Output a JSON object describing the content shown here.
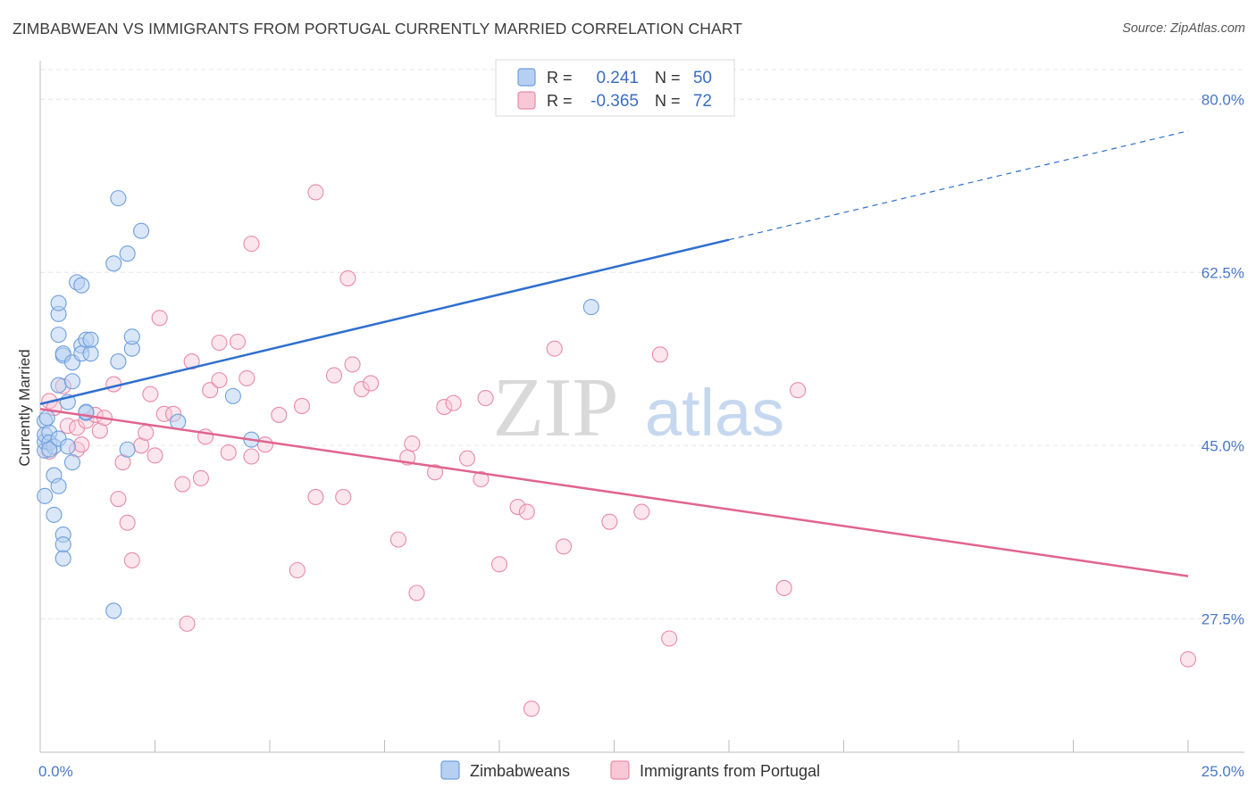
{
  "header": {
    "title": "ZIMBABWEAN VS IMMIGRANTS FROM PORTUGAL CURRENTLY MARRIED CORRELATION CHART",
    "source": "Source: ZipAtlas.com"
  },
  "watermark": {
    "zip": "ZIP",
    "atlas": "atlas"
  },
  "chart_data": {
    "type": "scatter",
    "ylabel": "Currently Married",
    "xlim": [
      0,
      25
    ],
    "ylim": [
      14,
      83
    ],
    "x_tick_labels": [
      "0.0%",
      "25.0%"
    ],
    "y_ticks": [
      {
        "value": 80.0,
        "label": "80.0%"
      },
      {
        "value": 62.5,
        "label": "62.5%"
      },
      {
        "value": 45.0,
        "label": "45.0%"
      },
      {
        "value": 27.5,
        "label": "27.5%"
      }
    ],
    "grid": true,
    "legend_position": "top-center",
    "colors": {
      "zimbabweans_fill": "#b6d0f2",
      "zimbabweans_stroke": "#6e9fdc",
      "zimbabweans_line": "#2f6fcf",
      "portugal_fill": "#f8c8d6",
      "portugal_stroke": "#e98aa8",
      "portugal_line": "#e0648e",
      "tick_label": "#4a78c8"
    },
    "stats": [
      {
        "r_label": "R =",
        "r": "0.241",
        "n_label": "N =",
        "n": "50"
      },
      {
        "r_label": "R =",
        "r": "-0.365",
        "n_label": "N =",
        "n": "72"
      }
    ],
    "series": [
      {
        "name": "Zimbabweans",
        "trend": {
          "x0": 0.0,
          "y0": 49.2,
          "x1": 15.0,
          "y1": 65.8,
          "x_dash_end": 25.0,
          "y_dash_end": 76.8
        },
        "points": [
          [
            0.1,
            39.9
          ],
          [
            0.1,
            44.5
          ],
          [
            0.1,
            45.4
          ],
          [
            0.1,
            47.5
          ],
          [
            0.1,
            46.1
          ],
          [
            0.2,
            46.3
          ],
          [
            0.2,
            45.3
          ],
          [
            0.3,
            44.9
          ],
          [
            0.2,
            44.6
          ],
          [
            0.3,
            42.0
          ],
          [
            0.3,
            38.0
          ],
          [
            0.4,
            51.1
          ],
          [
            0.4,
            40.9
          ],
          [
            0.4,
            56.2
          ],
          [
            0.4,
            58.3
          ],
          [
            0.4,
            59.4
          ],
          [
            0.4,
            45.7
          ],
          [
            0.5,
            36.0
          ],
          [
            0.5,
            35.0
          ],
          [
            0.5,
            33.6
          ],
          [
            0.5,
            54.1
          ],
          [
            0.5,
            54.3
          ],
          [
            0.6,
            44.9
          ],
          [
            0.6,
            49.4
          ],
          [
            0.7,
            51.5
          ],
          [
            0.7,
            53.4
          ],
          [
            0.7,
            43.3
          ],
          [
            0.8,
            61.5
          ],
          [
            0.9,
            55.1
          ],
          [
            0.9,
            61.2
          ],
          [
            0.9,
            54.3
          ],
          [
            1.0,
            48.3
          ],
          [
            1.0,
            55.7
          ],
          [
            1.0,
            48.4
          ],
          [
            1.1,
            54.3
          ],
          [
            1.1,
            55.7
          ],
          [
            1.6,
            63.4
          ],
          [
            1.6,
            28.3
          ],
          [
            1.7,
            53.5
          ],
          [
            1.7,
            70.0
          ],
          [
            1.9,
            64.4
          ],
          [
            1.9,
            44.6
          ],
          [
            2.0,
            54.8
          ],
          [
            2.0,
            56.0
          ],
          [
            2.2,
            66.7
          ],
          [
            3.0,
            47.4
          ],
          [
            4.2,
            50.0
          ],
          [
            4.6,
            45.6
          ],
          [
            12.0,
            59.0
          ],
          [
            0.15,
            47.8
          ]
        ]
      },
      {
        "name": "Immigrants from Portugal",
        "trend": {
          "x0": 0.0,
          "y0": 48.7,
          "x1": 25.0,
          "y1": 31.8
        },
        "points": [
          [
            0.2,
            44.4
          ],
          [
            0.2,
            49.5
          ],
          [
            0.3,
            48.8
          ],
          [
            0.5,
            51.0
          ],
          [
            0.6,
            47.0
          ],
          [
            0.8,
            44.6
          ],
          [
            0.8,
            46.8
          ],
          [
            0.9,
            45.1
          ],
          [
            1.0,
            47.5
          ],
          [
            1.2,
            48.1
          ],
          [
            1.3,
            46.5
          ],
          [
            1.4,
            47.8
          ],
          [
            1.6,
            51.2
          ],
          [
            1.7,
            39.6
          ],
          [
            1.8,
            43.3
          ],
          [
            1.9,
            37.2
          ],
          [
            2.0,
            33.4
          ],
          [
            2.2,
            45.0
          ],
          [
            2.3,
            46.3
          ],
          [
            2.4,
            50.2
          ],
          [
            2.5,
            44.0
          ],
          [
            2.6,
            57.9
          ],
          [
            2.7,
            48.2
          ],
          [
            2.9,
            48.2
          ],
          [
            3.1,
            41.1
          ],
          [
            3.2,
            27.0
          ],
          [
            3.3,
            53.5
          ],
          [
            3.5,
            41.7
          ],
          [
            3.6,
            45.9
          ],
          [
            3.7,
            50.6
          ],
          [
            3.9,
            51.6
          ],
          [
            3.9,
            55.4
          ],
          [
            4.1,
            44.3
          ],
          [
            4.3,
            55.5
          ],
          [
            4.5,
            51.8
          ],
          [
            4.6,
            43.9
          ],
          [
            4.6,
            65.4
          ],
          [
            4.9,
            45.1
          ],
          [
            5.2,
            48.1
          ],
          [
            5.6,
            32.4
          ],
          [
            5.7,
            49.0
          ],
          [
            6.0,
            70.6
          ],
          [
            6.0,
            39.8
          ],
          [
            6.4,
            52.1
          ],
          [
            6.6,
            39.8
          ],
          [
            6.7,
            61.9
          ],
          [
            6.8,
            53.2
          ],
          [
            7.0,
            50.7
          ],
          [
            7.2,
            51.3
          ],
          [
            7.8,
            35.5
          ],
          [
            8.0,
            43.8
          ],
          [
            8.1,
            45.2
          ],
          [
            8.2,
            30.1
          ],
          [
            8.6,
            42.3
          ],
          [
            8.8,
            48.9
          ],
          [
            9.0,
            49.3
          ],
          [
            9.3,
            43.7
          ],
          [
            9.6,
            41.6
          ],
          [
            9.7,
            49.8
          ],
          [
            10.0,
            33.0
          ],
          [
            10.4,
            38.8
          ],
          [
            10.6,
            38.3
          ],
          [
            10.7,
            18.4
          ],
          [
            11.2,
            54.8
          ],
          [
            11.4,
            34.8
          ],
          [
            12.4,
            37.3
          ],
          [
            13.1,
            38.3
          ],
          [
            13.5,
            54.2
          ],
          [
            13.7,
            25.5
          ],
          [
            16.2,
            30.6
          ],
          [
            16.5,
            50.6
          ],
          [
            25.0,
            23.4
          ]
        ]
      }
    ]
  },
  "legend": {
    "items": [
      "Zimbabweans",
      "Immigrants from Portugal"
    ]
  }
}
